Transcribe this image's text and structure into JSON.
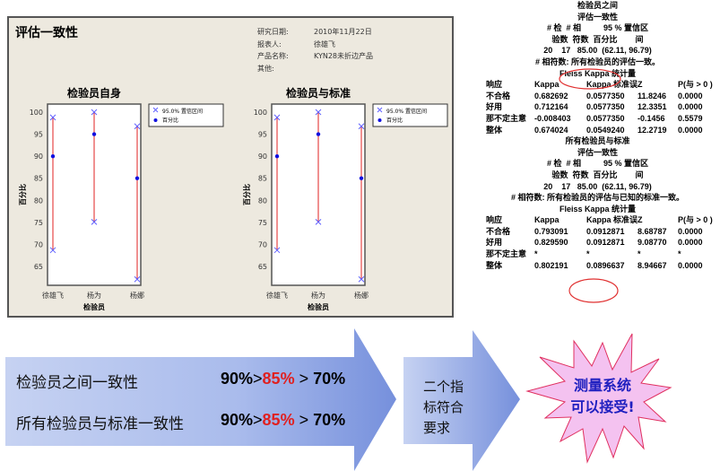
{
  "report": {
    "title": "评估一致性",
    "info": [
      {
        "label": "研究日期:",
        "value": "2010年11月22日"
      },
      {
        "label": "报表人:",
        "value": "徐雄飞"
      },
      {
        "label": "产品名称:",
        "value": "KYN28未折边产品"
      },
      {
        "label": "其他:",
        "value": ""
      }
    ]
  },
  "chart_data": [
    {
      "type": "scatter",
      "title": "检验员自身",
      "xlabel": "检验员",
      "ylabel": "百分比",
      "ylim": [
        61,
        102
      ],
      "yticks": [
        65,
        70,
        75,
        80,
        85,
        90,
        95,
        100
      ],
      "categories": [
        "徐雄飞",
        "杨为",
        "杨娜"
      ],
      "legend": [
        "95.0% 置信区间",
        "百分比"
      ],
      "legend_position": "right",
      "percent": [
        90,
        95,
        85
      ],
      "ci_lower": [
        68.7,
        75.1,
        62.1
      ],
      "ci_upper": [
        98.8,
        100,
        96.8
      ]
    },
    {
      "type": "scatter",
      "title": "检验员与标准",
      "xlabel": "检验员",
      "ylabel": "百分比",
      "ylim": [
        61,
        102
      ],
      "yticks": [
        65,
        70,
        75,
        80,
        85,
        90,
        95,
        100
      ],
      "categories": [
        "徐雄飞",
        "杨为",
        "杨娜"
      ],
      "legend": [
        "95.0% 置信区间",
        "百分比"
      ],
      "legend_position": "right",
      "percent": [
        90,
        95,
        85
      ],
      "ci_lower": [
        68.7,
        75.1,
        62.1
      ],
      "ci_upper": [
        98.8,
        100,
        96.8
      ]
    }
  ],
  "stats": {
    "between": {
      "title": "检验员之间",
      "sub": "评估一致性",
      "h1": "# 检  # 相          95 % 置信区",
      "h2": "验数  符数  百分比        间",
      "row": "20    17   85.00  (62.11, 96.79)",
      "note": "# 相符数: 所有检验员的评估一致。",
      "kappa_title": "Fleiss Kappa 统计量",
      "cols": [
        "响应",
        "Kappa",
        "Kappa 标准误",
        "Z",
        "P(与 > 0 )"
      ],
      "rows": [
        [
          "不合格",
          "0.682692",
          "0.0577350",
          "11.8246",
          "0.0000"
        ],
        [
          "好用",
          "0.712164",
          "0.0577350",
          "12.3351",
          "0.0000"
        ],
        [
          "那不定主意",
          "-0.008403",
          "0.0577350",
          "-0.1456",
          "0.5579"
        ],
        [
          "整体",
          "0.674024",
          "0.0549240",
          "12.2719",
          "0.0000"
        ]
      ]
    },
    "standard": {
      "title": "所有检验员与标准",
      "sub": "评估一致性",
      "h1": "# 检  # 相          95 % 置信区",
      "h2": "验数  符数  百分比        间",
      "row": "20    17   85.00  (62.11, 96.79)",
      "note": "# 相符数: 所有检验员的评估与已知的标准一致。",
      "kappa_title": "Fleiss Kappa 统计量",
      "cols": [
        "响应",
        "Kappa",
        "Kappa 标准误",
        "Z",
        "P(与 > 0 )"
      ],
      "rows": [
        [
          "不合格",
          "0.793091",
          "0.0912871",
          "8.68787",
          "0.0000"
        ],
        [
          "好用",
          "0.829590",
          "0.0912871",
          "9.08770",
          "0.0000"
        ],
        [
          "那不定主意",
          "*",
          "*",
          "*",
          "*"
        ],
        [
          "整体",
          "0.802191",
          "0.0896637",
          "8.94667",
          "0.0000"
        ]
      ]
    }
  },
  "summary": {
    "row1": {
      "label": "检验员之间一致性",
      "a": "90%",
      "gt1": ">",
      "b": "85%",
      "gt2": " > ",
      "c": "70%"
    },
    "row2": {
      "label": "所有检验员与标准一致性",
      "a": "90%",
      "gt1": ">",
      "b": "85%",
      "gt2": " > ",
      "c": "70%"
    },
    "middle": "二个指标符合要求",
    "result_line1": "测量系统",
    "result_line2": "可以接受!"
  },
  "colors": {
    "ci_line": "#e02020",
    "marker": "#1010e0",
    "ci_marker": "#6060ff",
    "arrow": "#7d96dc",
    "star": "#f4c2f0",
    "star_border": "#e03060",
    "result_text": "#2020c0"
  }
}
